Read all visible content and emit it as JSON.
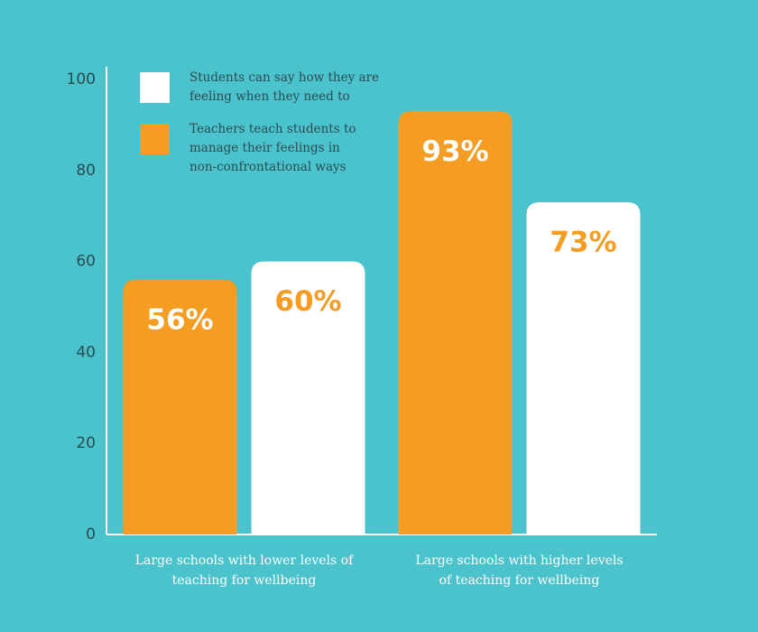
{
  "chart_data": {
    "type": "bar",
    "categories": [
      "Large schools with lower levels of\nteaching for wellbeing",
      "Large schools with higher levels\nof teaching for wellbeing"
    ],
    "series": [
      {
        "name": "Students can say how they are\nfeeling when they need to",
        "color": "#ffffff",
        "values": [
          60,
          73
        ],
        "value_labels": [
          "60%",
          "73%"
        ]
      },
      {
        "name": "Teachers teach students to\nmanage their feelings in\nnon-confrontational ways",
        "color": "#f59c23",
        "values": [
          56,
          93
        ],
        "value_labels": [
          "56%",
          "93%"
        ]
      }
    ],
    "ylim": [
      0,
      100
    ],
    "yticks": [
      0,
      20,
      40,
      60,
      80,
      100
    ],
    "grid": false,
    "legend": "top-left"
  }
}
